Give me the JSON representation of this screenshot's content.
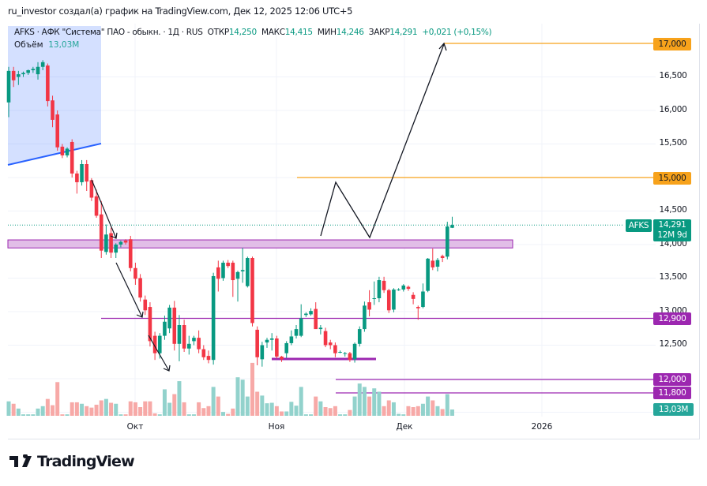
{
  "header": {
    "caption": "ru_investor создал(а) график на TradingView.com, Дек 12, 2025 12:06 UTC+5"
  },
  "legend": {
    "symbol_line": "AFKS · АФК \"Система\" ПАО - обыкн. · 1Д · RUS",
    "open_label": "ОТКР",
    "open": "14,250",
    "high_label": "МАКС",
    "high": "14,415",
    "low_label": "МИН",
    "low": "14,246",
    "close_label": "ЗАКР",
    "close": "14,291",
    "change": "+0,021 (+0,15%)",
    "volume_label": "Объём",
    "volume": "13,03M"
  },
  "price_axis": {
    "ticks": [
      "16,500",
      "16,000",
      "15,500",
      "14,500",
      "14,000",
      "13,500",
      "13,000",
      "12,500"
    ]
  },
  "price_tags": {
    "t17000": "17,000",
    "t15000": "15,000",
    "t12900": "12,900",
    "t12000": "12,000",
    "t11800": "11,800",
    "symbol": "AFKS",
    "last": "14,291",
    "countdown": "12M 9d",
    "volume": "13,03M"
  },
  "time_axis": [
    "Окт",
    "Ноя",
    "Дек",
    "2026"
  ],
  "colors": {
    "up": "#089981",
    "down": "#f23645",
    "vol_up": "#92d2cc",
    "vol_down": "#f7a9a7",
    "orange": "#f7a21b",
    "purple": "#9c27b0",
    "blue": "#2962ff"
  },
  "chart_data": {
    "type": "candlestick",
    "symbol": "AFKS",
    "timeframe": "1D",
    "price_unit": "RUB",
    "ylim": [
      11000,
      17300
    ],
    "candles_ohlc": [
      [
        16120,
        16650,
        15900,
        16590
      ],
      [
        16590,
        16650,
        16350,
        16450
      ],
      [
        16500,
        16590,
        16380,
        16540
      ],
      [
        16540,
        16580,
        16500,
        16560
      ],
      [
        16560,
        16610,
        16530,
        16600
      ],
      [
        16600,
        16650,
        16560,
        16620
      ],
      [
        16540,
        16720,
        16460,
        16650
      ],
      [
        16650,
        16750,
        16600,
        16720
      ],
      [
        16670,
        16700,
        16060,
        16140
      ],
      [
        16150,
        16220,
        15750,
        15860
      ],
      [
        15940,
        16000,
        15400,
        15450
      ],
      [
        15460,
        15500,
        15290,
        15330
      ],
      [
        15330,
        15450,
        15300,
        15430
      ],
      [
        15530,
        15570,
        15000,
        15060
      ],
      [
        15060,
        15100,
        14760,
        14930
      ],
      [
        14930,
        15260,
        14880,
        15200
      ],
      [
        15200,
        15260,
        14800,
        14940
      ],
      [
        14960,
        14990,
        14650,
        14700
      ],
      [
        14720,
        14820,
        14400,
        14430
      ],
      [
        14450,
        14650,
        13800,
        13910
      ],
      [
        13890,
        14300,
        13850,
        14150
      ],
      [
        14170,
        14250,
        13800,
        13880
      ],
      [
        13880,
        14020,
        13800,
        14000
      ],
      [
        14000,
        14060,
        13960,
        14040
      ],
      [
        14060,
        14080,
        14000,
        14030
      ],
      [
        14080,
        14130,
        13600,
        13650
      ],
      [
        13650,
        13730,
        13400,
        13490
      ],
      [
        13500,
        13560,
        13150,
        13210
      ],
      [
        13180,
        13240,
        12950,
        13020
      ],
      [
        13070,
        13140,
        12480,
        12560
      ],
      [
        12640,
        12700,
        12280,
        12380
      ],
      [
        12380,
        12680,
        12300,
        12640
      ],
      [
        12640,
        12940,
        12580,
        12850
      ],
      [
        12750,
        13100,
        12680,
        13060
      ],
      [
        13060,
        13160,
        12420,
        12520
      ],
      [
        12520,
        12950,
        12260,
        12800
      ],
      [
        12800,
        12880,
        12400,
        12450
      ],
      [
        12450,
        12640,
        12360,
        12520
      ],
      [
        12560,
        12640,
        12500,
        12610
      ],
      [
        12610,
        12720,
        12380,
        12440
      ],
      [
        12440,
        12500,
        12280,
        12320
      ],
      [
        12340,
        12420,
        12230,
        12280
      ],
      [
        12280,
        13580,
        12210,
        13530
      ],
      [
        13660,
        13760,
        13300,
        13490
      ],
      [
        13500,
        13760,
        13460,
        13730
      ],
      [
        13730,
        13770,
        13650,
        13680
      ],
      [
        13730,
        13760,
        13220,
        13470
      ],
      [
        13490,
        13610,
        13150,
        13590
      ],
      [
        13600,
        13950,
        13430,
        13620
      ],
      [
        13380,
        13820,
        13360,
        13800
      ],
      [
        13800,
        13820,
        12780,
        12830
      ],
      [
        12730,
        12780,
        12200,
        12320
      ],
      [
        12290,
        12550,
        12180,
        12500
      ],
      [
        12540,
        12610,
        12460,
        12580
      ],
      [
        12580,
        12680,
        12420,
        12600
      ],
      [
        12600,
        12640,
        12300,
        12330
      ],
      [
        12330,
        12340,
        12250,
        12290
      ],
      [
        12380,
        12560,
        12310,
        12530
      ],
      [
        12530,
        12720,
        12500,
        12630
      ],
      [
        12640,
        12800,
        12600,
        12740
      ],
      [
        12640,
        13110,
        12620,
        12900
      ],
      [
        12950,
        12990,
        12920,
        12970
      ],
      [
        12960,
        13050,
        12940,
        13010
      ],
      [
        13040,
        13140,
        12750,
        12740
      ],
      [
        12740,
        12800,
        12660,
        12760
      ],
      [
        12710,
        12760,
        12470,
        12500
      ],
      [
        12540,
        12580,
        12440,
        12500
      ],
      [
        12500,
        12540,
        12320,
        12380
      ],
      [
        12400,
        12420,
        12380,
        12400
      ],
      [
        12380,
        12400,
        12330,
        12380
      ],
      [
        12380,
        12400,
        12250,
        12280
      ],
      [
        12290,
        12540,
        12240,
        12520
      ],
      [
        12520,
        12780,
        12480,
        12740
      ],
      [
        12740,
        13150,
        12700,
        13090
      ],
      [
        13140,
        13320,
        12930,
        13030
      ],
      [
        13200,
        13450,
        13100,
        13200
      ],
      [
        13200,
        13520,
        13140,
        13470
      ],
      [
        13460,
        13520,
        13280,
        13320
      ],
      [
        13320,
        13340,
        12980,
        13020
      ],
      [
        13030,
        13350,
        12990,
        13330
      ],
      [
        13330,
        13350,
        13310,
        13330
      ],
      [
        13330,
        13410,
        13300,
        13390
      ],
      [
        13370,
        13390,
        13310,
        13340
      ],
      [
        13250,
        13290,
        13110,
        13190
      ],
      [
        13070,
        13090,
        12880,
        13050
      ],
      [
        13070,
        13420,
        13050,
        13300
      ],
      [
        13310,
        13800,
        13290,
        13790
      ],
      [
        13760,
        13940,
        13620,
        13660
      ],
      [
        13670,
        13800,
        13600,
        13770
      ],
      [
        13830,
        13850,
        13740,
        13800
      ],
      [
        13820,
        14340,
        13780,
        14270
      ],
      [
        14250,
        14415,
        14246,
        14291
      ]
    ],
    "volume_millions": [
      30,
      25,
      15,
      3,
      3,
      3,
      15,
      20,
      35,
      22,
      70,
      3,
      3,
      28,
      28,
      25,
      20,
      17,
      23,
      32,
      35,
      27,
      25,
      3,
      3,
      30,
      28,
      18,
      30,
      30,
      5,
      3,
      55,
      27,
      45,
      72,
      28,
      3,
      3,
      28,
      16,
      20,
      60,
      40,
      8,
      4,
      15,
      80,
      75,
      40,
      110,
      50,
      42,
      26,
      27,
      20,
      9,
      9,
      29,
      21,
      60,
      3,
      3,
      40,
      30,
      18,
      16,
      20,
      3,
      3,
      12,
      40,
      67,
      60,
      40,
      57,
      50,
      20,
      32,
      28,
      4,
      3,
      20,
      18,
      20,
      25,
      40,
      32,
      20,
      14,
      45,
      13.03
    ],
    "horizontal_levels": [
      17000,
      15000,
      12900,
      12000,
      11800
    ],
    "zone": [
      13950,
      14070
    ],
    "support_segment": 12250,
    "last_price": 14291
  }
}
